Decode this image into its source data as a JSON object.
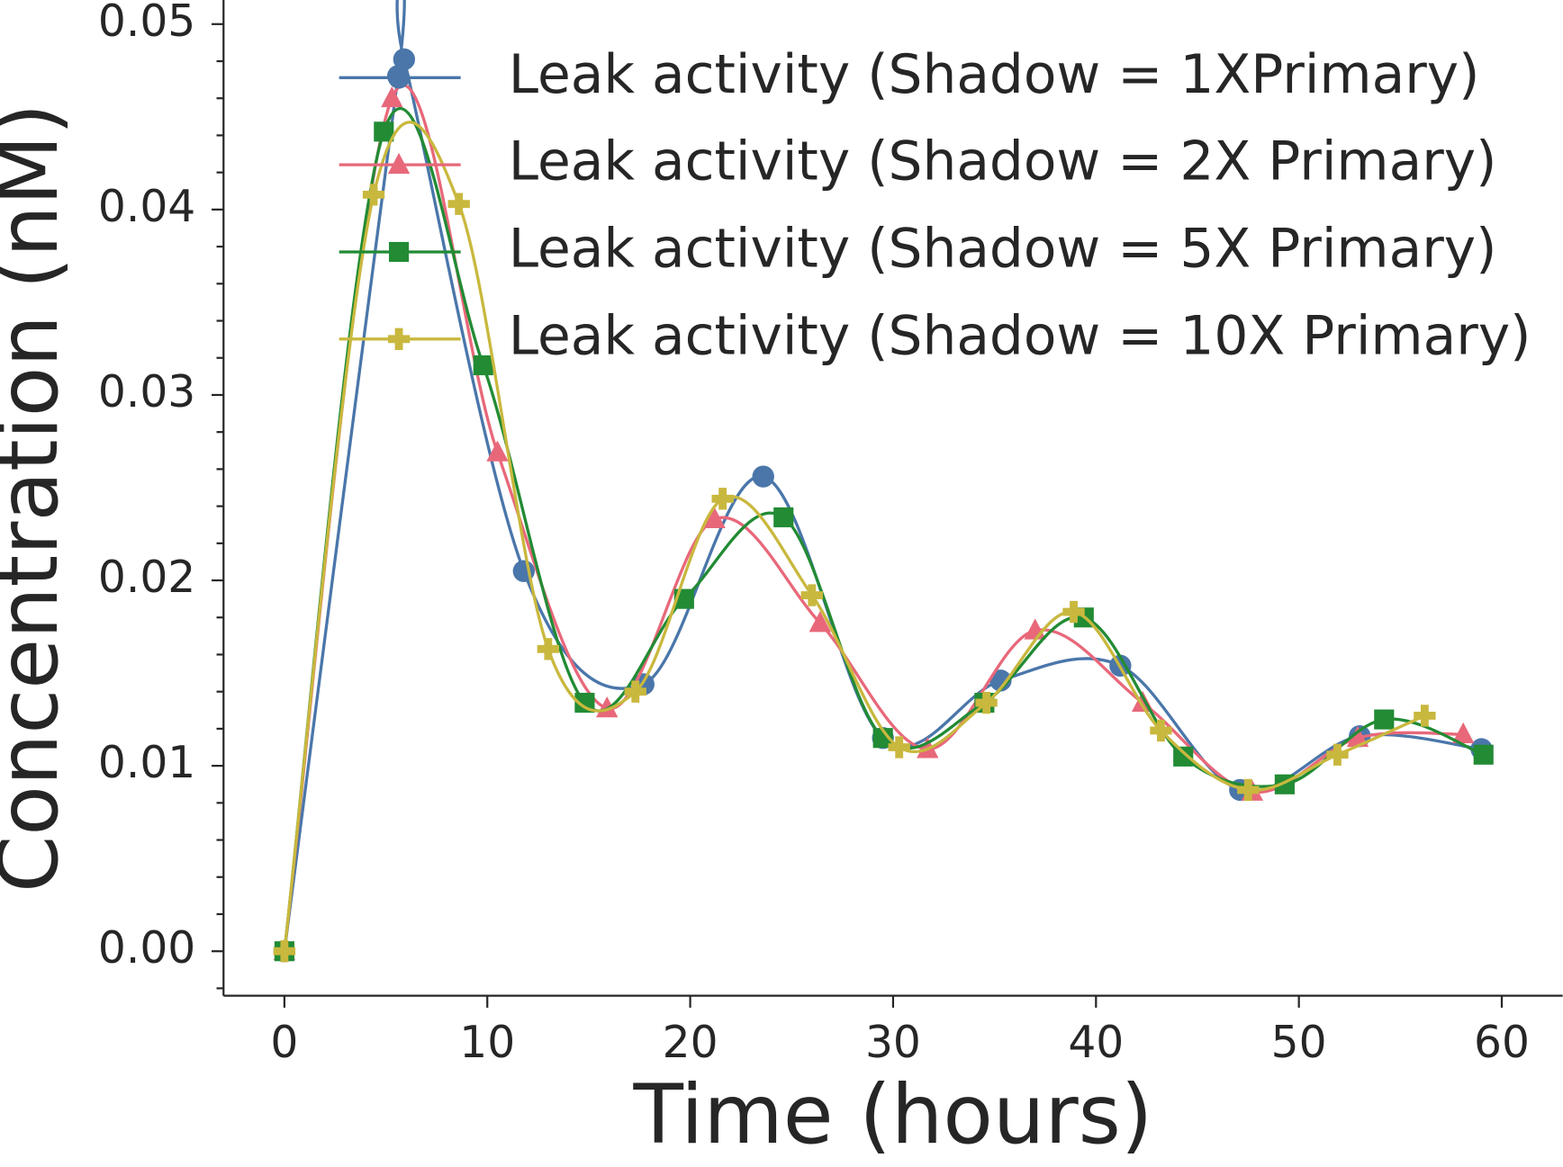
{
  "chart_data": {
    "type": "line",
    "x_label": "Time (hours)",
    "y_label": "Concentration (nM)",
    "xlim": [
      -3,
      63
    ],
    "ylim": [
      -0.0024,
      0.0513
    ],
    "xticks": [
      0,
      10,
      20,
      30,
      40,
      50,
      60
    ],
    "yticks": [
      {
        "value": 0,
        "label": "0.00"
      },
      {
        "value": 0.01,
        "label": "0.01"
      },
      0.02,
      0.03,
      0.04,
      0.05
    ],
    "yminorticks": [
      -0.002,
      0.002,
      0.004,
      0.006,
      0.008,
      0.012,
      0.014,
      0.016,
      0.018,
      0.022,
      0.024,
      0.026,
      0.028,
      0.032,
      0.034,
      0.036,
      0.038,
      0.042,
      0.044,
      0.046,
      0.048
    ],
    "legend": "upper right",
    "series": [
      {
        "name": "Leak activity (Shadow = 1XPrimary)",
        "color": "#4a76aa",
        "marker": "circle",
        "x": [
          0,
          5.6,
          5.9,
          11.8,
          17.7,
          23.6,
          29.5,
          35.3,
          41.2,
          47.1,
          53.0,
          59.0
        ],
        "values": [
          0,
          0.0472,
          0.0481,
          0.0205,
          0.0144,
          0.0256,
          0.0115,
          0.0146,
          0.0154,
          0.0087,
          0.0116,
          0.0109
        ]
      },
      {
        "name": "Leak activity (Shadow = 2X Primary)",
        "color": "#e8687a",
        "marker": "triangle",
        "x": [
          0,
          5.3,
          10.5,
          15.9,
          21.2,
          26.4,
          31.7,
          37.0,
          42.3,
          47.7,
          52.9,
          58.1
        ],
        "values": [
          0,
          0.046,
          0.0269,
          0.0131,
          0.0233,
          0.0177,
          0.0109,
          0.0173,
          0.0134,
          0.0086,
          0.0115,
          0.0117
        ]
      },
      {
        "name": "Leak activity (Shadow = 5X Primary)",
        "color": "#228b34",
        "marker": "square",
        "x": [
          0,
          4.9,
          9.8,
          14.8,
          19.7,
          24.6,
          29.5,
          34.5,
          39.4,
          44.3,
          49.3,
          54.2,
          59.1
        ],
        "values": [
          0,
          0.0442,
          0.0316,
          0.0134,
          0.019,
          0.0234,
          0.0115,
          0.0134,
          0.018,
          0.0105,
          0.009,
          0.0125,
          0.0106
        ]
      },
      {
        "name": "Leak activity (Shadow = 10X Primary)",
        "color": "#c9b83e",
        "marker": "plus",
        "x": [
          0,
          4.4,
          8.6,
          13.0,
          17.3,
          21.6,
          26.0,
          30.3,
          34.6,
          38.9,
          43.2,
          47.5,
          51.9,
          56.2
        ],
        "values": [
          0,
          0.0408,
          0.0403,
          0.0163,
          0.014,
          0.0244,
          0.0192,
          0.011,
          0.0134,
          0.0183,
          0.0119,
          0.0087,
          0.0106,
          0.0127
        ]
      }
    ]
  }
}
